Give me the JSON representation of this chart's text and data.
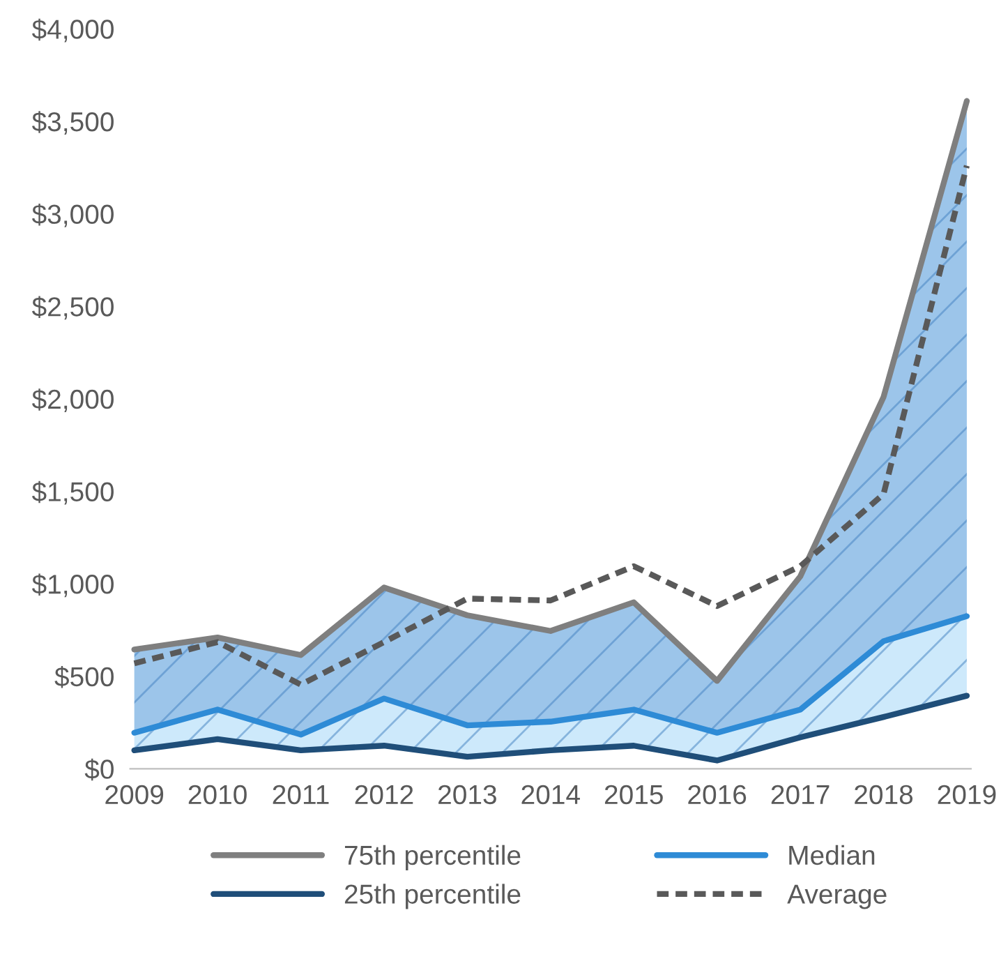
{
  "chart_data": {
    "type": "line",
    "categories": [
      "2009",
      "2010",
      "2011",
      "2012",
      "2013",
      "2014",
      "2015",
      "2016",
      "2017",
      "2018",
      "2019"
    ],
    "series": [
      {
        "name": "75th percentile",
        "color": "#7f7f7f",
        "values": [
          645,
          710,
          615,
          980,
          830,
          745,
          900,
          475,
          1040,
          2010,
          3610
        ],
        "lower": [
          195,
          320,
          185,
          380,
          235,
          255,
          320,
          195,
          320,
          690,
          825
        ],
        "upper": [
          645,
          710,
          615,
          980,
          830,
          745,
          900,
          475,
          1040,
          2010,
          3610
        ]
      },
      {
        "name": "Median",
        "color": "#2e8bd6",
        "values": [
          195,
          320,
          185,
          380,
          235,
          255,
          320,
          195,
          320,
          690,
          825
        ],
        "lower": [
          100,
          160,
          100,
          125,
          65,
          100,
          125,
          45,
          170,
          280,
          395
        ],
        "upper": [
          195,
          320,
          185,
          380,
          235,
          255,
          320,
          195,
          320,
          690,
          825
        ]
      },
      {
        "name": "25th percentile",
        "color": "#1f4e79",
        "values": [
          100,
          160,
          100,
          125,
          65,
          100,
          125,
          45,
          170,
          280,
          395
        ]
      },
      {
        "name": "Average",
        "color": "#595959",
        "line_style": "dashed",
        "values": [
          570,
          685,
          455,
          685,
          920,
          910,
          1095,
          880,
          1095,
          1485,
          3260
        ]
      }
    ],
    "ylim": [
      0,
      4000
    ],
    "yticks": [
      {
        "value": 0,
        "label": "$0"
      },
      {
        "value": 500,
        "label": "$500"
      },
      {
        "value": 1000,
        "label": "$1,000"
      },
      {
        "value": 1500,
        "label": "$1,500"
      },
      {
        "value": 2000,
        "label": "$2,000"
      },
      {
        "value": 2500,
        "label": "$2,500"
      },
      {
        "value": 3000,
        "label": "$3,000"
      },
      {
        "value": 3500,
        "label": "$3,500"
      },
      {
        "value": 4000,
        "label": "$4,000"
      }
    ],
    "grid": false,
    "legend": "bottom"
  }
}
